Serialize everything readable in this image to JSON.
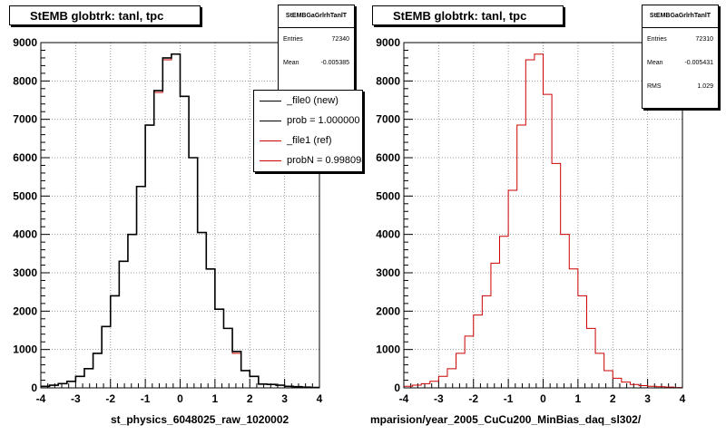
{
  "colors": {
    "ref": "#cc0000",
    "new": "#000000",
    "grid": "#999999",
    "frame": "#000000"
  },
  "chart_data": [
    {
      "type": "bar",
      "title": "StEMB globtrk: tanl, tpc",
      "xlabel": "st_physics_6048025_raw_1020002",
      "xlim": [
        -4,
        4
      ],
      "ylim": [
        0,
        9000
      ],
      "grid": true,
      "x_ticks": [
        "-4",
        "-3",
        "-2",
        "-1",
        "0",
        "1",
        "2",
        "3",
        "4"
      ],
      "y_ticks": [
        "0",
        "1000",
        "2000",
        "3000",
        "4000",
        "5000",
        "6000",
        "7000",
        "8000",
        "9000"
      ],
      "bin_edges": [
        -4.0,
        -3.75,
        -3.5,
        -3.25,
        -3.0,
        -2.75,
        -2.5,
        -2.25,
        -2.0,
        -1.75,
        -1.5,
        -1.25,
        -1.0,
        -0.75,
        -0.5,
        -0.25,
        0.0,
        0.25,
        0.5,
        0.75,
        1.0,
        1.25,
        1.5,
        1.75,
        2.0,
        2.25,
        2.5,
        2.75,
        3.0,
        3.25,
        3.5,
        3.75,
        4.0
      ],
      "series": [
        {
          "name": "_file1 (ref)",
          "color": "#cc0000",
          "values": [
            40,
            70,
            110,
            170,
            300,
            500,
            900,
            1600,
            2400,
            3300,
            4000,
            5250,
            6850,
            7700,
            8550,
            8700,
            7600,
            6000,
            4050,
            3100,
            2050,
            1550,
            900,
            450,
            300,
            100,
            90,
            70,
            40,
            30,
            20,
            10
          ]
        },
        {
          "name": "_file0 (new)",
          "color": "#000000",
          "values": [
            40,
            70,
            110,
            170,
            300,
            500,
            900,
            1600,
            2400,
            3300,
            4000,
            5250,
            6850,
            7750,
            8600,
            8700,
            7600,
            6000,
            4050,
            3100,
            2050,
            1550,
            950,
            450,
            300,
            100,
            90,
            70,
            40,
            30,
            20,
            10
          ]
        }
      ],
      "stats": {
        "name": "StEMBGaGrlrhTanlT",
        "Entries": "72340",
        "Mean": "-0.005385"
      },
      "legend": {
        "placement": "top-right",
        "items": [
          {
            "label": "_file0 (new)",
            "color": "#000000"
          },
          {
            "label": "prob = 1.000000",
            "color": "#000000"
          },
          {
            "label": "_file1 (ref)",
            "color": "#cc0000"
          },
          {
            "label": "probN = 0.998098",
            "color": "#cc0000"
          }
        ]
      }
    },
    {
      "type": "bar",
      "title": "StEMB globtrk: tanl, tpc",
      "xlabel": "mparision/year_2005_CuCu200_MinBias_daq_sl302/",
      "xlim": [
        -4,
        4
      ],
      "ylim": [
        0,
        9000
      ],
      "grid": true,
      "x_ticks": [
        "-4",
        "-3",
        "-2",
        "-1",
        "0",
        "1",
        "2",
        "3",
        "4"
      ],
      "y_ticks": [
        "0",
        "1000",
        "2000",
        "3000",
        "4000",
        "5000",
        "6000",
        "7000",
        "8000",
        "9000"
      ],
      "bin_edges": [
        -4.0,
        -3.75,
        -3.5,
        -3.25,
        -3.0,
        -2.75,
        -2.5,
        -2.25,
        -2.0,
        -1.75,
        -1.5,
        -1.25,
        -1.0,
        -0.75,
        -0.5,
        -0.25,
        0.0,
        0.25,
        0.5,
        0.75,
        1.0,
        1.25,
        1.5,
        1.75,
        2.0,
        2.25,
        2.5,
        2.75,
        3.0,
        3.25,
        3.5,
        3.75,
        4.0
      ],
      "series": [
        {
          "color": "#cc0000",
          "values": [
            40,
            70,
            110,
            170,
            300,
            500,
            900,
            1350,
            1900,
            2400,
            3250,
            3950,
            5150,
            6850,
            8550,
            8700,
            7650,
            5850,
            4000,
            3100,
            2400,
            1550,
            900,
            450,
            250,
            150,
            90,
            60,
            40,
            30,
            20,
            10
          ]
        }
      ],
      "stats": {
        "name": "StEMBGaGrlrhTanlT",
        "Entries": "72310",
        "Mean": "-0.005431",
        "RMS": "1.029"
      }
    }
  ]
}
